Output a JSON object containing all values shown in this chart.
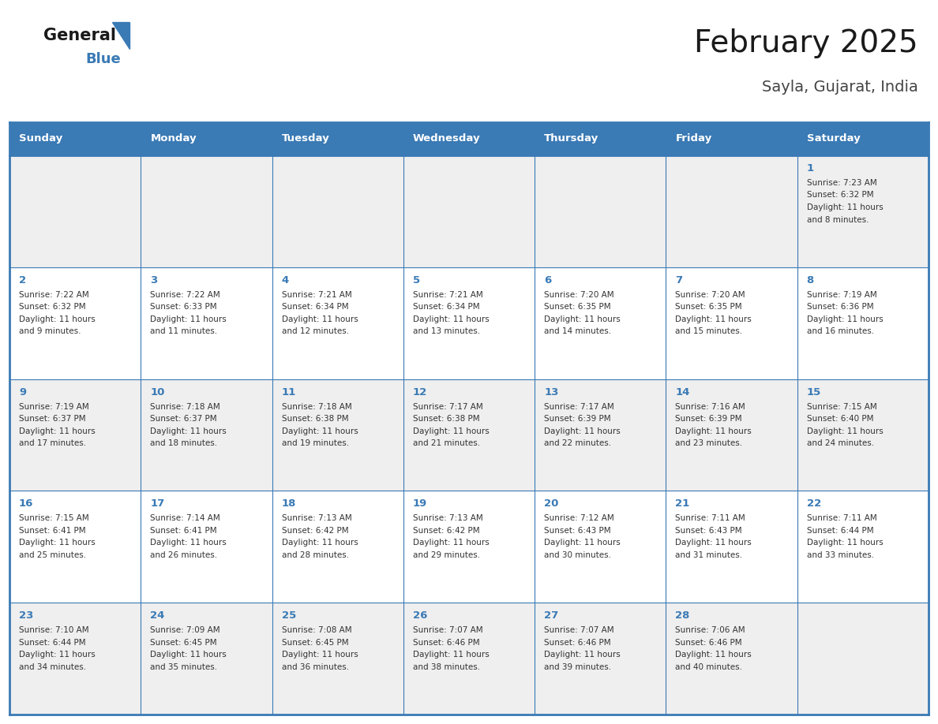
{
  "title": "February 2025",
  "subtitle": "Sayla, Gujarat, India",
  "header_bg": "#3a7ab5",
  "header_text": "#ffffff",
  "header_days": [
    "Sunday",
    "Monday",
    "Tuesday",
    "Wednesday",
    "Thursday",
    "Friday",
    "Saturday"
  ],
  "odd_row_bg": "#efefef",
  "even_row_bg": "#ffffff",
  "border_color": "#3a7ab5",
  "day_number_color": "#3a7ab5",
  "cell_text_color": "#333333",
  "title_color": "#1a1a1a",
  "subtitle_color": "#444444",
  "weeks": [
    [
      null,
      null,
      null,
      null,
      null,
      null,
      1
    ],
    [
      2,
      3,
      4,
      5,
      6,
      7,
      8
    ],
    [
      9,
      10,
      11,
      12,
      13,
      14,
      15
    ],
    [
      16,
      17,
      18,
      19,
      20,
      21,
      22
    ],
    [
      23,
      24,
      25,
      26,
      27,
      28,
      null
    ]
  ],
  "cell_data": {
    "1": {
      "sunrise": "7:23 AM",
      "sunset": "6:32 PM",
      "daylight": "11 hours and 8 minutes"
    },
    "2": {
      "sunrise": "7:22 AM",
      "sunset": "6:32 PM",
      "daylight": "11 hours and 9 minutes"
    },
    "3": {
      "sunrise": "7:22 AM",
      "sunset": "6:33 PM",
      "daylight": "11 hours and 11 minutes"
    },
    "4": {
      "sunrise": "7:21 AM",
      "sunset": "6:34 PM",
      "daylight": "11 hours and 12 minutes"
    },
    "5": {
      "sunrise": "7:21 AM",
      "sunset": "6:34 PM",
      "daylight": "11 hours and 13 minutes"
    },
    "6": {
      "sunrise": "7:20 AM",
      "sunset": "6:35 PM",
      "daylight": "11 hours and 14 minutes"
    },
    "7": {
      "sunrise": "7:20 AM",
      "sunset": "6:35 PM",
      "daylight": "11 hours and 15 minutes"
    },
    "8": {
      "sunrise": "7:19 AM",
      "sunset": "6:36 PM",
      "daylight": "11 hours and 16 minutes"
    },
    "9": {
      "sunrise": "7:19 AM",
      "sunset": "6:37 PM",
      "daylight": "11 hours and 17 minutes"
    },
    "10": {
      "sunrise": "7:18 AM",
      "sunset": "6:37 PM",
      "daylight": "11 hours and 18 minutes"
    },
    "11": {
      "sunrise": "7:18 AM",
      "sunset": "6:38 PM",
      "daylight": "11 hours and 19 minutes"
    },
    "12": {
      "sunrise": "7:17 AM",
      "sunset": "6:38 PM",
      "daylight": "11 hours and 21 minutes"
    },
    "13": {
      "sunrise": "7:17 AM",
      "sunset": "6:39 PM",
      "daylight": "11 hours and 22 minutes"
    },
    "14": {
      "sunrise": "7:16 AM",
      "sunset": "6:39 PM",
      "daylight": "11 hours and 23 minutes"
    },
    "15": {
      "sunrise": "7:15 AM",
      "sunset": "6:40 PM",
      "daylight": "11 hours and 24 minutes"
    },
    "16": {
      "sunrise": "7:15 AM",
      "sunset": "6:41 PM",
      "daylight": "11 hours and 25 minutes"
    },
    "17": {
      "sunrise": "7:14 AM",
      "sunset": "6:41 PM",
      "daylight": "11 hours and 26 minutes"
    },
    "18": {
      "sunrise": "7:13 AM",
      "sunset": "6:42 PM",
      "daylight": "11 hours and 28 minutes"
    },
    "19": {
      "sunrise": "7:13 AM",
      "sunset": "6:42 PM",
      "daylight": "11 hours and 29 minutes"
    },
    "20": {
      "sunrise": "7:12 AM",
      "sunset": "6:43 PM",
      "daylight": "11 hours and 30 minutes"
    },
    "21": {
      "sunrise": "7:11 AM",
      "sunset": "6:43 PM",
      "daylight": "11 hours and 31 minutes"
    },
    "22": {
      "sunrise": "7:11 AM",
      "sunset": "6:44 PM",
      "daylight": "11 hours and 33 minutes"
    },
    "23": {
      "sunrise": "7:10 AM",
      "sunset": "6:44 PM",
      "daylight": "11 hours and 34 minutes"
    },
    "24": {
      "sunrise": "7:09 AM",
      "sunset": "6:45 PM",
      "daylight": "11 hours and 35 minutes"
    },
    "25": {
      "sunrise": "7:08 AM",
      "sunset": "6:45 PM",
      "daylight": "11 hours and 36 minutes"
    },
    "26": {
      "sunrise": "7:07 AM",
      "sunset": "6:46 PM",
      "daylight": "11 hours and 38 minutes"
    },
    "27": {
      "sunrise": "7:07 AM",
      "sunset": "6:46 PM",
      "daylight": "11 hours and 39 minutes"
    },
    "28": {
      "sunrise": "7:06 AM",
      "sunset": "6:46 PM",
      "daylight": "11 hours and 40 minutes"
    }
  }
}
